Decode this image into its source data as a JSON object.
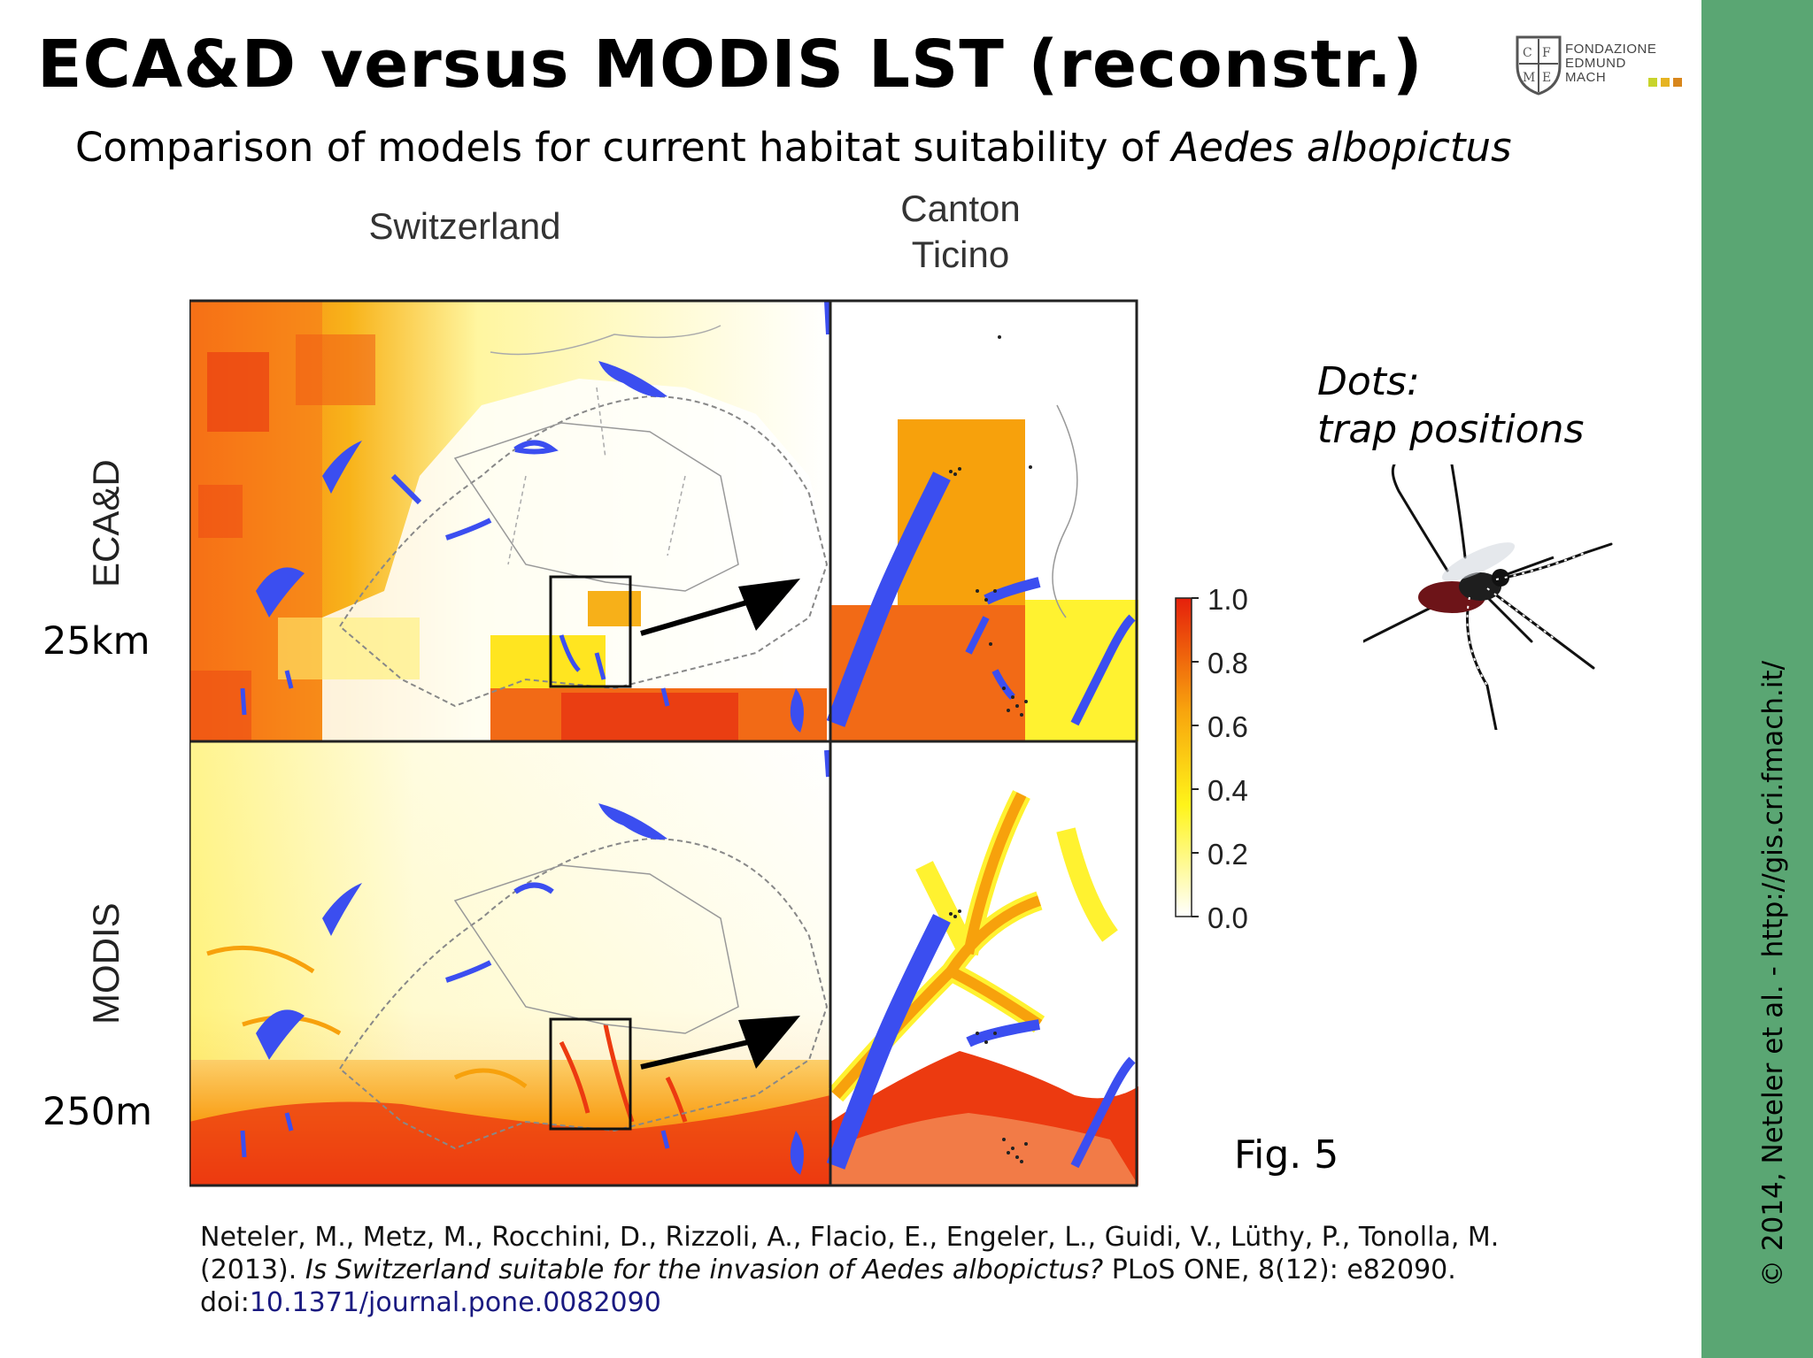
{
  "slide": {
    "title": "ECA&D versus MODIS LST (reconstr.)",
    "subtitle_prefix": "Comparison of models for current habitat suitability of ",
    "subtitle_species": "Aedes albopictus"
  },
  "logo": {
    "line1": "FONDAZIONE",
    "line2": "EDMUND",
    "line3": "MACH"
  },
  "figure": {
    "column_labels": [
      "Switzerland",
      "Canton",
      "Ticino"
    ],
    "row_labels": [
      "ECA&D",
      "MODIS"
    ],
    "resolutions": [
      "25km",
      "250m"
    ],
    "legend_ticks": [
      "1.0",
      "0.8",
      "0.6",
      "0.4",
      "0.2",
      "0.0"
    ],
    "fig_label": "Fig. 5"
  },
  "note": {
    "line1": "Dots:",
    "line2": "trap positions"
  },
  "citation": {
    "line1": "Neteler, M., Metz, M., Rocchini, D., Rizzoli, A., Flacio, E., Engeler, L., Guidi, V., Lüthy, P., Tonolla, M.",
    "line2_prefix": "(2013). ",
    "line2_title": "Is Switzerland suitable for the invasion of Aedes albopictus?",
    "line2_suffix": " PLoS ONE, 8(12): e82090.",
    "doi_prefix": "doi:",
    "doi": "10.1371/journal.pone.0082090"
  },
  "copyright": "© 2014, Neteler et al. - http://gis.cri.fmach.it/",
  "colors": {
    "sidebar": "#5aa673",
    "lake": "#3b4ef0",
    "high": "#e8380e",
    "mid": "#f7a10c",
    "low": "#fff230"
  }
}
